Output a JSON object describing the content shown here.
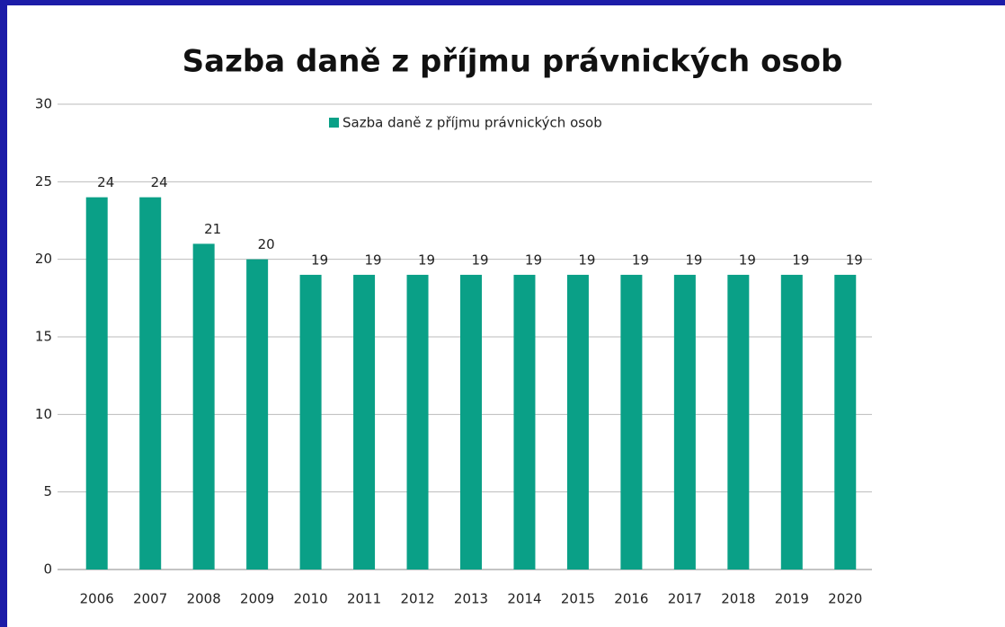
{
  "chart_data": {
    "type": "bar",
    "title": "Sazba daně z příjmu právnických osob",
    "categories": [
      "2006",
      "2007",
      "2008",
      "2009",
      "2010",
      "2011",
      "2012",
      "2013",
      "2014",
      "2015",
      "2016",
      "2017",
      "2018",
      "2019",
      "2020"
    ],
    "series": [
      {
        "name": "Sazba daně z příjmu právnických osob",
        "color": "#0aa087",
        "values": [
          24,
          24,
          21,
          20,
          19,
          19,
          19,
          19,
          19,
          19,
          19,
          19,
          19,
          19,
          19
        ]
      }
    ],
    "ylim": [
      0,
      30
    ],
    "yticks": [
      0,
      5,
      10,
      15,
      20,
      25,
      30
    ],
    "grid": true,
    "legend": "top",
    "data_labels": true
  }
}
